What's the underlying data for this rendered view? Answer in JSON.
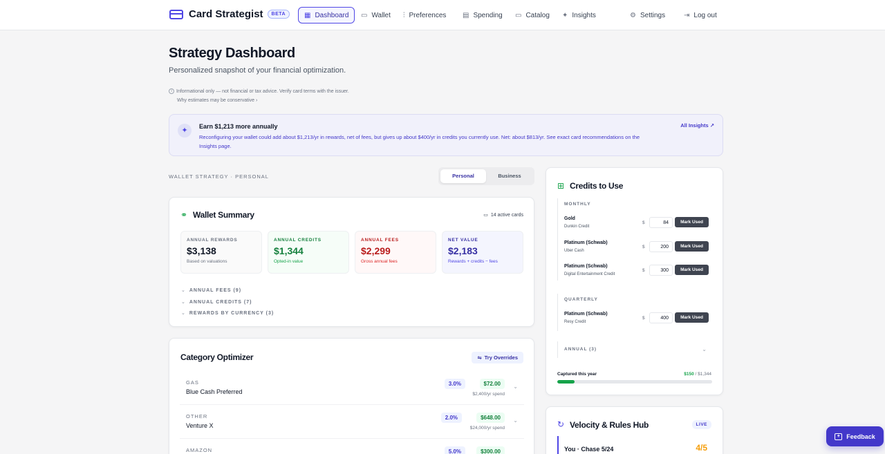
{
  "brand": {
    "name": "Card Strategist",
    "badge": "BETA"
  },
  "nav": {
    "dashboard": "Dashboard",
    "wallet": "Wallet",
    "preferences": "Preferences",
    "spending": "Spending",
    "catalog": "Catalog",
    "insights": "Insights",
    "settings": "Settings",
    "logout": "Log out"
  },
  "page": {
    "title": "Strategy Dashboard",
    "subtitle": "Personalized snapshot of your financial optimization.",
    "disclaimer": "Informational only — not financial or tax advice. Verify card terms with the issuer.",
    "why": "Why estimates may be conservative ›"
  },
  "banner": {
    "title": "Earn $1,213 more annually",
    "text": "Reconfiguring your wallet could add about $1,213/yr in rewards, net of fees, but gives up about $400/yr in credits you currently use. Net: about $813/yr. See exact card recommendations on the Insights page.",
    "link": "All Insights ↗"
  },
  "strategy": {
    "label": "WALLET STRATEGY · PERSONAL",
    "personal": "Personal",
    "business": "Business"
  },
  "summary": {
    "title": "Wallet Summary",
    "active": "14 active cards",
    "stats": [
      {
        "label": "ANNUAL REWARDS",
        "value": "$3,138",
        "sub": "Based on valuations",
        "color": "#111827",
        "sub_color": "#6b7280",
        "label_color": "#6b7280",
        "bg": "#fafafa"
      },
      {
        "label": "ANNUAL CREDITS",
        "value": "$1,344",
        "sub": "Opted-in value",
        "color": "#15803d",
        "sub_color": "#16a34a",
        "label_color": "#15803d",
        "bg": "#f6fdf8"
      },
      {
        "label": "ANNUAL FEES",
        "value": "$2,299",
        "sub": "Gross annual fees",
        "color": "#b91c1c",
        "sub_color": "#dc2626",
        "label_color": "#b91c1c",
        "bg": "#fff8f8"
      },
      {
        "label": "NET VALUE",
        "value": "$2,183",
        "sub": "Rewards + credits − fees",
        "color": "#3730a3",
        "sub_color": "#4f46e5",
        "label_color": "#3730a3",
        "bg": "#f4f5fe"
      }
    ],
    "expanders": [
      "ANNUAL FEES (9)",
      "ANNUAL CREDITS (7)",
      "REWARDS BY CURRENCY (3)"
    ]
  },
  "optimizer": {
    "title": "Category Optimizer",
    "try": "Try Overrides",
    "rows": [
      {
        "cat": "GAS",
        "card": "Blue Cash Preferred",
        "rate": "3.0%",
        "value": "$72.00",
        "spend": "$2,400/yr spend"
      },
      {
        "cat": "OTHER",
        "card": "Venture X",
        "rate": "2.0%",
        "value": "$648.00",
        "spend": "$24,000/yr spend"
      },
      {
        "cat": "AMAZON",
        "card": "",
        "rate": "5.0%",
        "value": "$300.00",
        "spend": ""
      }
    ]
  },
  "credits": {
    "title": "Credits to Use",
    "monthly": "MONTHLY",
    "quarterly": "QUARTERLY",
    "annual": "ANNUAL (3)",
    "mark": "Mark Used",
    "dollar": "$",
    "monthly_items": [
      {
        "name": "Gold",
        "sub": "Dunkin Credit",
        "amount": "84"
      },
      {
        "name": "Platinum (Schwab)",
        "sub": "Uber Cash",
        "amount": "200"
      },
      {
        "name": "Platinum (Schwab)",
        "sub": "Digital Entertainment Credit",
        "amount": "300"
      }
    ],
    "quarterly_items": [
      {
        "name": "Platinum (Schwab)",
        "sub": "Resy Credit",
        "amount": "400"
      }
    ],
    "captured_label": "Captured this year",
    "captured": "$150",
    "captured_total": "/ $1,344",
    "progress": 0.11
  },
  "velocity": {
    "title": "Velocity & Rules Hub",
    "live": "LIVE",
    "row": "You · Chase 5/24",
    "count": "4/5"
  },
  "feedback": "Feedback"
}
